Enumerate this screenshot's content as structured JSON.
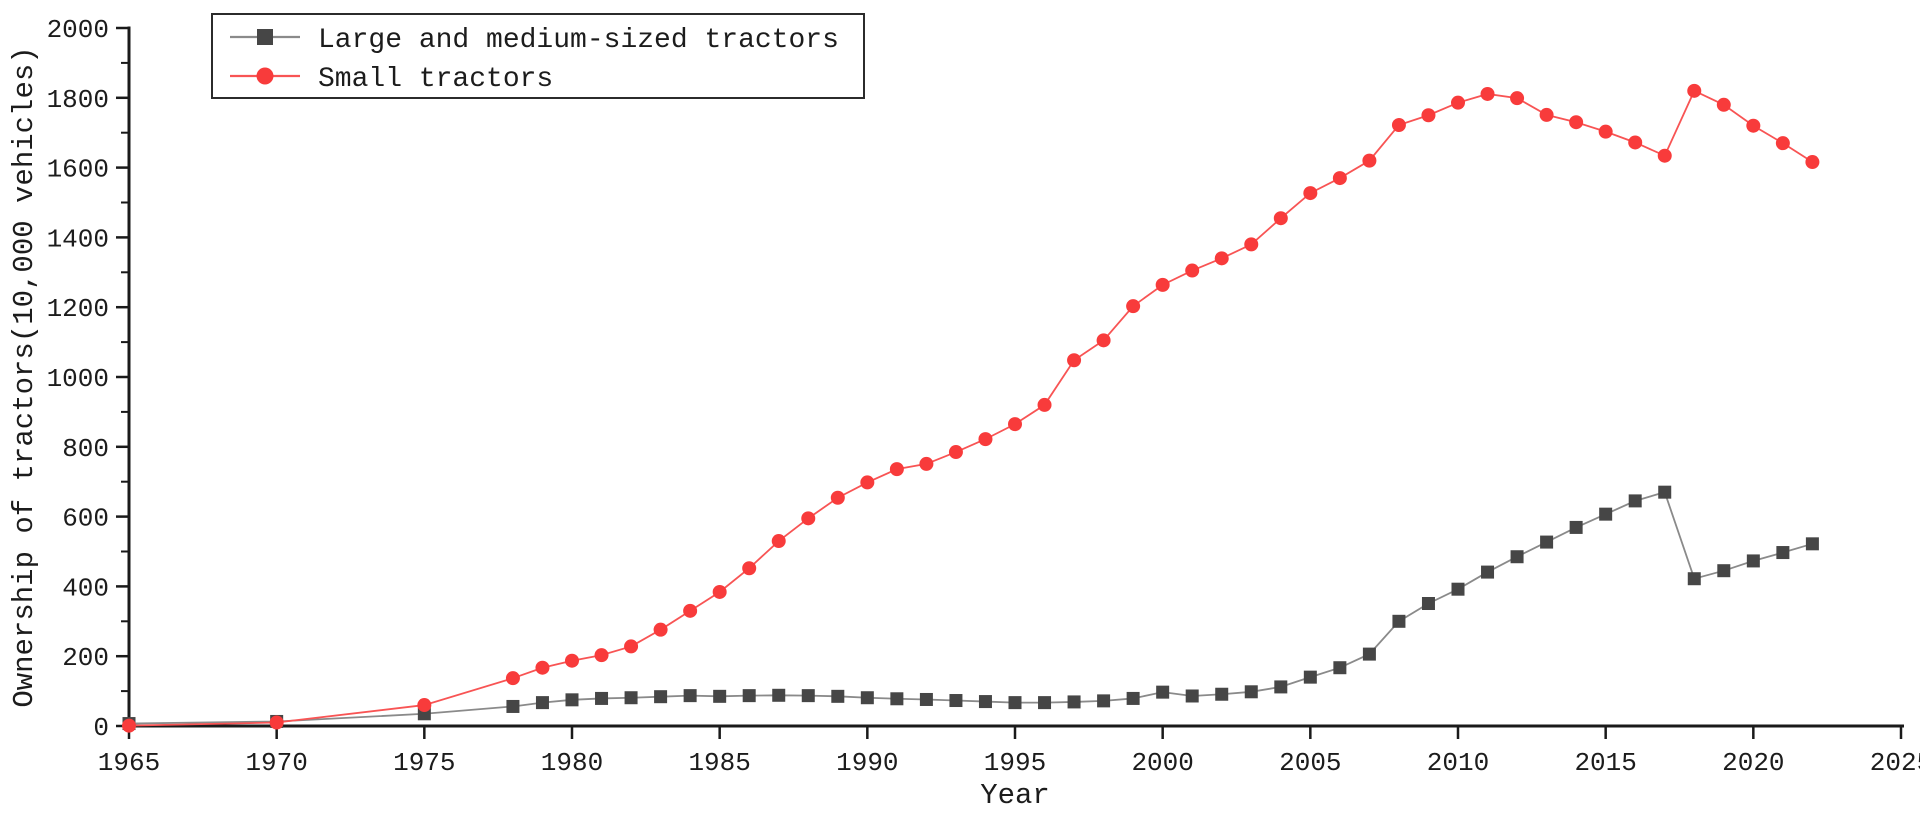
{
  "chart_data": {
    "type": "line",
    "title": "",
    "xlabel": "Year",
    "ylabel": "Ownership of tractors(10,000 vehicles)",
    "xlim": [
      1965,
      2025
    ],
    "ylim": [
      0,
      2000
    ],
    "x_major_ticks": [
      1965,
      1970,
      1975,
      1980,
      1985,
      1990,
      1995,
      2000,
      2005,
      2010,
      2015,
      2020,
      2025
    ],
    "y_major_ticks": [
      0,
      200,
      400,
      600,
      800,
      1000,
      1200,
      1400,
      1600,
      1800,
      2000
    ],
    "y_minor_step": 100,
    "grid": false,
    "legend_position": "top-left",
    "x": [
      1965,
      1970,
      1975,
      1978,
      1979,
      1980,
      1981,
      1982,
      1983,
      1984,
      1985,
      1986,
      1987,
      1988,
      1989,
      1990,
      1991,
      1992,
      1993,
      1994,
      1995,
      1996,
      1997,
      1998,
      1999,
      2000,
      2001,
      2002,
      2003,
      2004,
      2005,
      2006,
      2007,
      2008,
      2009,
      2010,
      2011,
      2012,
      2013,
      2014,
      2015,
      2016,
      2017,
      2018,
      2019,
      2020,
      2021,
      2022
    ],
    "series": [
      {
        "name": "Large and medium-sized tractors",
        "marker": "square",
        "marker_color": "#464646",
        "line_color": "#8a8a8a",
        "values": [
          7,
          13,
          35,
          56,
          67,
          75,
          79,
          81,
          84,
          87,
          85,
          87,
          88,
          87,
          85,
          81,
          78,
          76,
          73,
          70,
          67,
          67,
          69,
          72,
          79,
          97,
          86,
          91,
          98,
          112,
          140,
          167,
          206,
          300,
          351,
          392,
          441,
          485,
          527,
          569,
          607,
          645,
          670,
          422,
          445,
          473,
          497,
          522
        ]
      },
      {
        "name": "Small tractors",
        "marker": "circle",
        "marker_color": "#f83b3b",
        "line_color": "#f85454",
        "values": [
          1,
          10,
          60,
          137,
          167,
          187,
          203,
          228,
          276,
          330,
          384,
          452,
          530,
          595,
          654,
          698,
          736,
          751,
          785,
          822,
          865,
          920,
          1048,
          1105,
          1203,
          1264,
          1305,
          1340,
          1380,
          1455,
          1527,
          1570,
          1620,
          1722,
          1750,
          1786,
          1811,
          1799,
          1751,
          1730,
          1703,
          1672,
          1634,
          1820,
          1780,
          1720,
          1670,
          1616
        ]
      }
    ]
  },
  "colors": {
    "axis": "#1a1a1a",
    "text": "#1c1c1c",
    "background": "#ffffff",
    "legend_border": "#2b2b2b"
  }
}
